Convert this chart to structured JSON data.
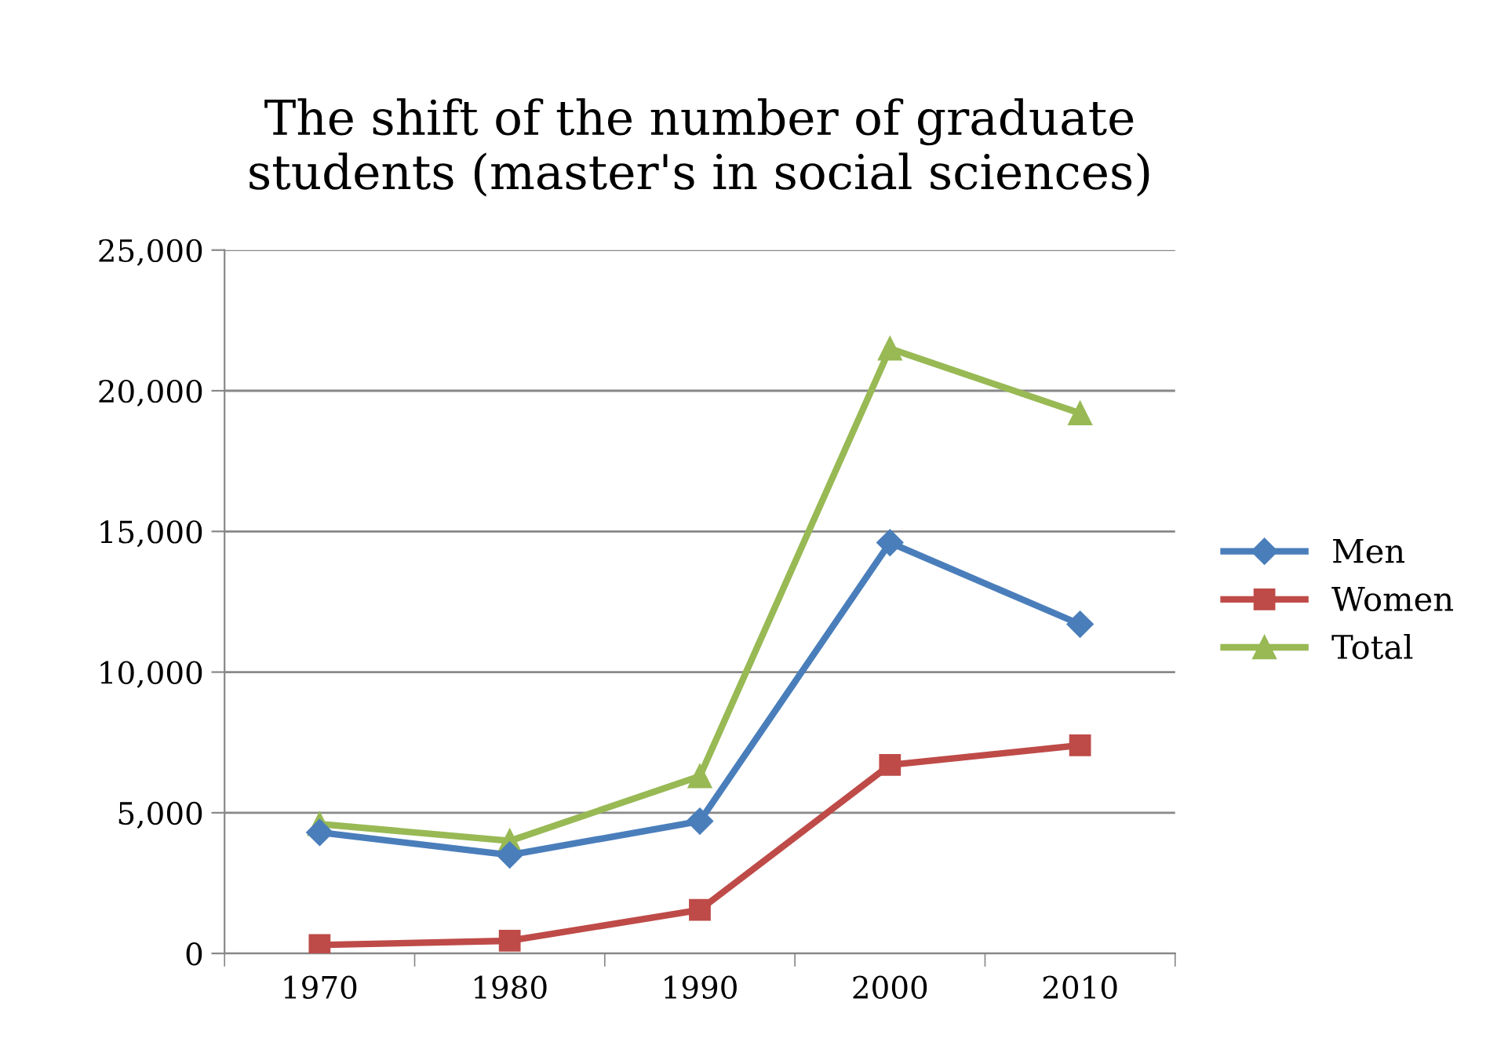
{
  "chart_data": {
    "type": "line",
    "title": "The shift of the number of graduate\nstudents (master's in social sciences)",
    "categories": [
      "1970",
      "1980",
      "1990",
      "2000",
      "2010"
    ],
    "series": [
      {
        "name": "Men",
        "color": "#4a7ebb",
        "marker": "diamond",
        "values": [
          4300,
          3500,
          4700,
          14600,
          11700
        ]
      },
      {
        "name": "Women",
        "color": "#be4b48",
        "marker": "square",
        "values": [
          300,
          450,
          1550,
          6700,
          7400
        ]
      },
      {
        "name": "Total",
        "color": "#98b954",
        "marker": "triangle",
        "values": [
          4600,
          4000,
          6300,
          21500,
          19200
        ]
      }
    ],
    "ylim": [
      0,
      25000
    ],
    "yticks": [
      {
        "value": 0,
        "label": "0"
      },
      {
        "value": 5000,
        "label": "5,000"
      },
      {
        "value": 10000,
        "label": "10,000"
      },
      {
        "value": 15000,
        "label": "15,000"
      },
      {
        "value": 20000,
        "label": "20,000"
      },
      {
        "value": 25000,
        "label": "25,000"
      }
    ],
    "grid": "y",
    "legend": "right",
    "line_style": "solid"
  }
}
